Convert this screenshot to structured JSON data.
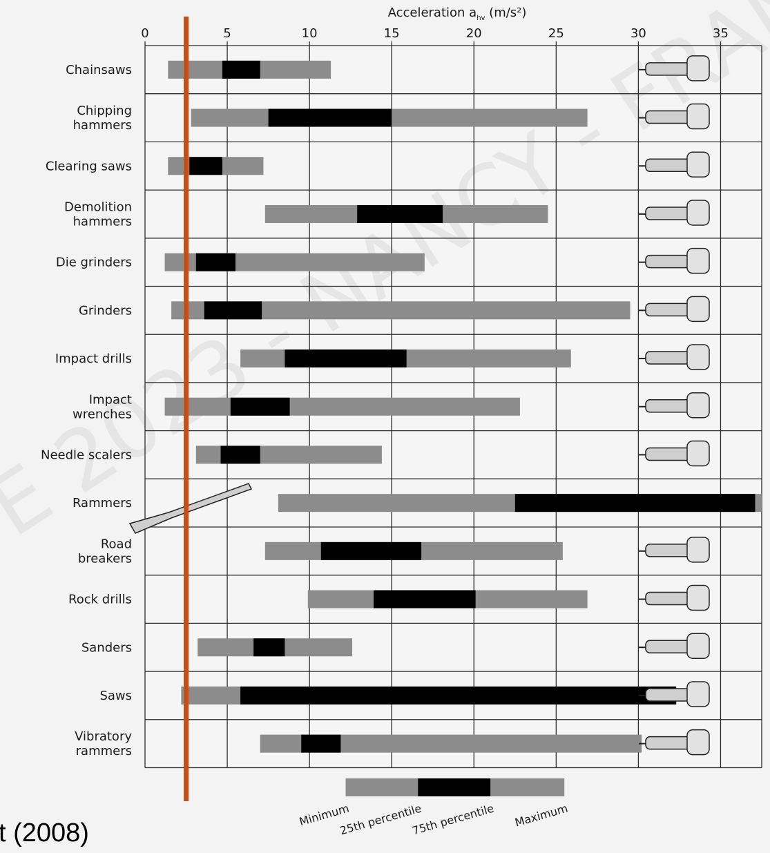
{
  "chart_data": {
    "type": "bar",
    "subtype": "floating range bars (min / 25th percentile / 75th percentile / max)",
    "title": "",
    "xlabel": "Acceleration a",
    "xlabel_subscript": "hv",
    "xlabel_unit": " (m/s²)",
    "xlim": [
      0,
      37.5
    ],
    "xticks": [
      0,
      5,
      10,
      15,
      20,
      25,
      30,
      35
    ],
    "grid": true,
    "reference_line": {
      "x": 2.5,
      "color": "#c0501f"
    },
    "colors": {
      "range": "#8c8c8c",
      "iqr": "#000000",
      "grid": "#2a2a2a"
    },
    "categories": [
      [
        "Chainsaws"
      ],
      [
        "Chipping",
        "hammers"
      ],
      [
        "Clearing saws"
      ],
      [
        "Demolition",
        "hammers"
      ],
      [
        "Die grinders"
      ],
      [
        "Grinders"
      ],
      [
        "Impact drills"
      ],
      [
        "Impact",
        "wrenches"
      ],
      [
        "Needle scalers"
      ],
      [
        "Rammers"
      ],
      [
        "Road",
        "breakers"
      ],
      [
        "Rock drills"
      ],
      [
        "Sanders"
      ],
      [
        "Saws"
      ],
      [
        "Vibratory",
        "rammers"
      ]
    ],
    "min": [
      1.4,
      2.8,
      1.4,
      7.3,
      1.2,
      1.6,
      5.8,
      1.2,
      3.1,
      8.1,
      7.3,
      9.9,
      3.2,
      2.2,
      7.0
    ],
    "p25": [
      4.7,
      7.5,
      2.7,
      12.9,
      3.1,
      3.6,
      8.5,
      5.2,
      4.6,
      22.5,
      10.7,
      13.9,
      6.6,
      5.8,
      9.5
    ],
    "p75": [
      7.0,
      15.0,
      4.7,
      18.1,
      5.5,
      7.1,
      15.9,
      8.8,
      7.0,
      37.1,
      16.8,
      20.1,
      8.5,
      32.3,
      11.9
    ],
    "max": [
      11.3,
      26.9,
      7.2,
      24.5,
      17.0,
      29.5,
      25.9,
      22.8,
      14.4,
      37.5,
      25.4,
      26.9,
      12.6,
      32.3,
      30.2
    ],
    "legend": {
      "example": {
        "min": 12.2,
        "p25": 16.6,
        "p75": 21.0,
        "max": 25.5
      },
      "labels": [
        "Minimum",
        "25th percentile",
        "75th percentile",
        "Maximum"
      ]
    }
  },
  "watermark": "E 2023 - NANCY - FRAN",
  "source_fragment": "t (2008)",
  "tool_icons": [
    "chainsaw-icon",
    "chipping-hammer-icon",
    "clearing-saw-icon",
    "demolition-hammer-icon",
    "die-grinder-icon",
    "angle-grinder-icon",
    "impact-drill-icon",
    "impact-wrench-icon",
    "needle-scaler-icon",
    "rammer-icon",
    "road-breaker-icon",
    "rock-drill-icon",
    "sander-icon",
    "saw-icon",
    "vibratory-rammer-icon"
  ]
}
